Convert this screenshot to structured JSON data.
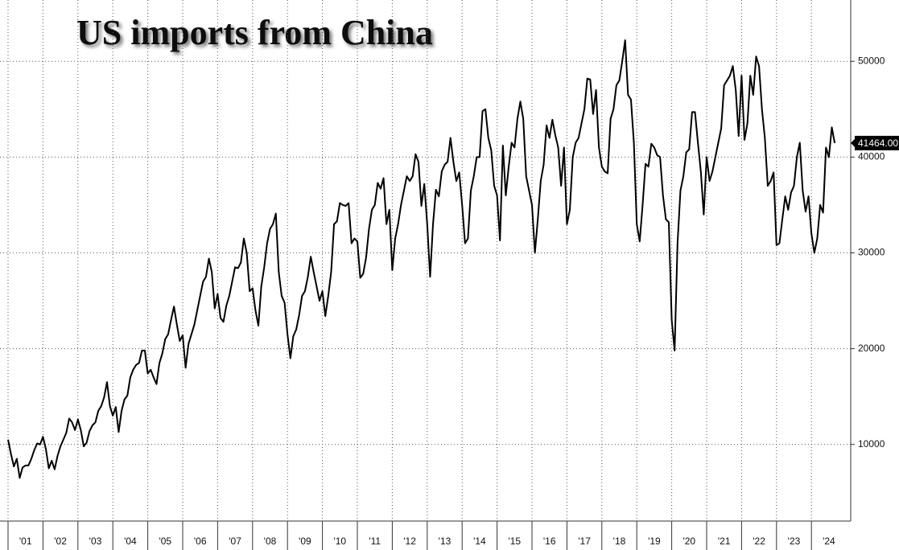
{
  "chart_data": {
    "type": "line",
    "title": "US imports from China",
    "color": "#000000",
    "grid": true,
    "ylim": [
      2000,
      56400
    ],
    "yticks": [
      10000,
      20000,
      30000,
      40000,
      50000
    ],
    "categories": [
      null,
      null,
      null,
      null,
      null,
      null,
      "'01",
      null,
      null,
      null,
      null,
      null,
      null,
      null,
      null,
      null,
      null,
      null,
      "'02",
      null,
      null,
      null,
      null,
      null,
      null,
      null,
      null,
      null,
      null,
      null,
      "'03",
      null,
      null,
      null,
      null,
      null,
      null,
      null,
      null,
      null,
      null,
      null,
      "'04",
      null,
      null,
      null,
      null,
      null,
      null,
      null,
      null,
      null,
      null,
      null,
      "'05",
      null,
      null,
      null,
      null,
      null,
      null,
      null,
      null,
      null,
      null,
      null,
      "'06",
      null,
      null,
      null,
      null,
      null,
      null,
      null,
      null,
      null,
      null,
      null,
      "'07",
      null,
      null,
      null,
      null,
      null,
      null,
      null,
      null,
      null,
      null,
      null,
      "'08",
      null,
      null,
      null,
      null,
      null,
      null,
      null,
      null,
      null,
      null,
      null,
      "'09",
      null,
      null,
      null,
      null,
      null,
      null,
      null,
      null,
      null,
      null,
      null,
      "'10",
      null,
      null,
      null,
      null,
      null,
      null,
      null,
      null,
      null,
      null,
      null,
      "'11",
      null,
      null,
      null,
      null,
      null,
      null,
      null,
      null,
      null,
      null,
      null,
      "'12",
      null,
      null,
      null,
      null,
      null,
      null,
      null,
      null,
      null,
      null,
      null,
      "'13",
      null,
      null,
      null,
      null,
      null,
      null,
      null,
      null,
      null,
      null,
      null,
      "'14",
      null,
      null,
      null,
      null,
      null,
      null,
      null,
      null,
      null,
      null,
      null,
      "'15",
      null,
      null,
      null,
      null,
      null,
      null,
      null,
      null,
      null,
      null,
      null,
      "'16",
      null,
      null,
      null,
      null,
      null,
      null,
      null,
      null,
      null,
      null,
      null,
      "'17",
      null,
      null,
      null,
      null,
      null,
      null,
      null,
      null,
      null,
      null,
      null,
      "'18",
      null,
      null,
      null,
      null,
      null,
      null,
      null,
      null,
      null,
      null,
      null,
      "'19",
      null,
      null,
      null,
      null,
      null,
      null,
      null,
      null,
      null,
      null,
      null,
      "'20",
      null,
      null,
      null,
      null,
      null,
      null,
      null,
      null,
      null,
      null,
      null,
      "'21",
      null,
      null,
      null,
      null,
      null,
      null,
      null,
      null,
      null,
      null,
      null,
      "'22",
      null,
      null,
      null,
      null,
      null,
      null,
      null,
      null,
      null,
      null,
      null,
      "'23",
      null,
      null,
      null,
      null,
      null,
      null,
      null,
      null,
      null,
      null,
      null,
      "'24",
      null,
      null
    ],
    "values": [
      10500,
      9000,
      7700,
      8500,
      6500,
      7600,
      7800,
      7800,
      8500,
      9400,
      10100,
      10000,
      10800,
      9500,
      7500,
      8300,
      7400,
      8800,
      9800,
      10500,
      11200,
      12700,
      12300,
      11500,
      12600,
      11500,
      9800,
      10200,
      11400,
      12000,
      12300,
      13500,
      14000,
      14900,
      16500,
      14000,
      13000,
      13900,
      11300,
      13500,
      14700,
      15100,
      17000,
      17800,
      18300,
      18500,
      19800,
      19800,
      17400,
      17800,
      17000,
      16300,
      18500,
      19500,
      21000,
      21500,
      23000,
      24400,
      22500,
      20800,
      21400,
      18000,
      20500,
      21500,
      22500,
      24000,
      25500,
      27000,
      27500,
      29400,
      28000,
      24200,
      25700,
      23200,
      22800,
      24500,
      25500,
      27000,
      28500,
      28400,
      29000,
      31500,
      30000,
      26000,
      26300,
      24000,
      22400,
      26500,
      28500,
      31000,
      32500,
      33000,
      34100,
      28000,
      25500,
      24800,
      21500,
      19000,
      21300,
      22000,
      23500,
      25500,
      26000,
      27500,
      29600,
      28000,
      26500,
      25000,
      26000,
      23400,
      25500,
      28000,
      33000,
      33300,
      35200,
      35000,
      34900,
      35200,
      31000,
      31500,
      31200,
      27400,
      27800,
      29500,
      32500,
      34500,
      35000,
      37300,
      36700,
      37800,
      33000,
      34500,
      28200,
      31500,
      33000,
      35000,
      36500,
      38000,
      37500,
      38000,
      40300,
      39500,
      34900,
      37200,
      33000,
      27500,
      33000,
      36600,
      35900,
      38500,
      39200,
      39500,
      42000,
      39500,
      37500,
      38400,
      35000,
      31000,
      31500,
      36500,
      38000,
      40000,
      40000,
      44800,
      45000,
      42000,
      40700,
      37000,
      36000,
      31300,
      41200,
      36000,
      39000,
      41500,
      41000,
      44000,
      45800,
      44000,
      38000,
      36500,
      35000,
      30000,
      33500,
      37500,
      39200,
      43300,
      42000,
      43900,
      42300,
      41000,
      37000,
      41000,
      33000,
      34500,
      40000,
      41500,
      42000,
      43500,
      45000,
      48200,
      48100,
      44500,
      47000,
      41000,
      39000,
      38500,
      38300,
      44000,
      45000,
      47500,
      48000,
      50000,
      52200,
      46500,
      46000,
      41500,
      33000,
      31200,
      35000,
      39300,
      39000,
      41400,
      41000,
      40200,
      40000,
      36000,
      33500,
      33200,
      23000,
      19800,
      31000,
      36500,
      38000,
      40500,
      40800,
      44700,
      44700,
      41500,
      38500,
      34000,
      40000,
      37500,
      38500,
      40000,
      41500,
      43000,
      47500,
      48000,
      48500,
      49500,
      47000,
      42200,
      48500,
      41800,
      43500,
      48500,
      46500,
      50500,
      49500,
      45000,
      42000,
      37000,
      37500,
      38400,
      30800,
      31000,
      33500,
      35900,
      34500,
      36300,
      37000,
      40000,
      41500,
      36500,
      34300,
      35900,
      32000,
      30000,
      31500,
      35000,
      34200,
      41000,
      40000,
      43100,
      41464
    ],
    "value_labels": [
      null,
      null,
      null,
      null,
      null,
      null,
      null,
      null,
      null,
      null,
      null,
      null,
      null,
      null,
      null,
      null,
      null,
      null,
      null,
      null,
      null,
      null,
      null,
      null,
      null,
      null,
      null,
      null,
      null,
      null,
      null,
      null,
      null,
      null,
      null,
      null,
      null,
      null,
      null,
      null,
      null,
      null,
      null,
      null,
      null,
      null,
      null,
      null,
      null,
      null,
      null,
      null,
      null,
      null,
      null,
      null,
      null,
      null,
      null,
      null,
      null,
      null,
      null,
      null,
      null,
      null,
      null,
      null,
      null,
      null,
      null,
      null,
      null,
      null,
      null,
      null,
      null,
      null,
      null,
      null,
      null,
      null,
      null,
      null,
      null,
      null,
      null,
      null,
      null,
      null,
      null,
      null,
      null,
      null,
      null,
      null,
      null,
      null,
      null,
      null,
      null,
      null,
      null,
      null,
      null,
      null,
      null,
      null,
      null,
      null,
      null,
      null,
      null,
      null,
      null,
      null,
      null,
      null,
      null,
      null,
      null,
      null,
      null,
      null,
      null,
      null,
      null,
      null,
      null,
      null,
      null,
      null,
      null,
      null,
      null,
      null,
      null,
      null,
      null,
      null,
      null,
      null,
      null,
      null,
      null,
      null,
      null,
      null,
      null,
      null,
      null,
      null,
      null,
      null,
      null,
      null,
      null,
      null,
      null,
      null,
      null,
      null,
      null,
      null,
      null,
      null,
      null,
      null,
      null,
      null,
      null,
      null,
      null,
      null,
      null,
      null,
      null,
      null,
      null,
      null,
      null,
      null,
      null,
      null,
      null,
      null,
      null,
      null,
      null,
      null,
      null,
      null,
      null,
      null,
      null,
      null,
      null,
      null,
      null,
      null,
      null,
      null,
      null,
      null,
      null,
      null,
      null,
      null,
      null,
      null,
      null,
      null,
      null,
      null,
      null,
      null,
      null,
      null,
      null,
      null,
      null,
      null,
      null,
      null,
      null,
      null,
      null,
      null,
      null,
      null,
      null,
      null,
      null,
      null,
      null,
      null,
      null,
      null,
      null,
      null,
      null,
      null,
      null,
      null,
      null,
      null,
      null,
      null,
      null,
      null,
      null,
      null,
      null,
      null,
      null,
      null,
      null,
      null,
      null,
      null,
      null,
      null,
      null,
      null,
      null,
      null,
      null,
      null,
      null,
      null,
      null,
      null,
      null,
      null,
      null,
      null,
      null,
      null,
      null,
      null,
      null,
      null,
      null,
      null,
      "41464.00"
    ]
  }
}
